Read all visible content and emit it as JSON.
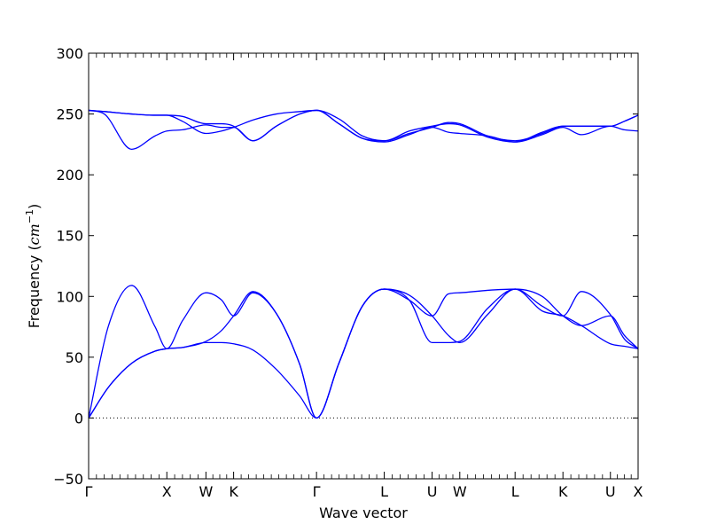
{
  "chart_data": {
    "type": "line",
    "xlabel": "Wave vector",
    "ylabel": {
      "text": "Frequency (",
      "unit": "cm",
      "exponent": "−1",
      "close": ")"
    },
    "ylim": [
      -50,
      300
    ],
    "yticks": [
      -50,
      0,
      50,
      100,
      150,
      200,
      250,
      300
    ],
    "ytick_labels": [
      "−50",
      "0",
      "50",
      "100",
      "150",
      "200",
      "250",
      "300"
    ],
    "x_points": [
      {
        "label": "Γ",
        "x": 0
      },
      {
        "label": "X",
        "x": 1.0
      },
      {
        "label": "W",
        "x": 1.5
      },
      {
        "label": "K",
        "x": 1.854
      },
      {
        "label": "Γ",
        "x": 2.914
      },
      {
        "label": "L",
        "x": 3.78
      },
      {
        "label": "U",
        "x": 4.392
      },
      {
        "label": "W",
        "x": 4.746
      },
      {
        "label": "L",
        "x": 5.453
      },
      {
        "label": "K",
        "x": 6.065
      },
      {
        "label": "U",
        "x": 6.672
      },
      {
        "label": "X",
        "x": 7.026
      }
    ],
    "xlim": [
      0,
      7.026
    ],
    "zero_line": 0,
    "series_color": "#0000ff",
    "series": [
      {
        "x": [
          0,
          0.25,
          0.55,
          0.85,
          1.0,
          1.2,
          1.5,
          1.7,
          1.854,
          2.1,
          2.4,
          2.7,
          2.914,
          3.2,
          3.5,
          3.78,
          4.1,
          4.392,
          4.6,
          4.746,
          5.1,
          5.453,
          5.8,
          6.065,
          6.3,
          6.672,
          6.85,
          7.026
        ],
        "y": [
          0,
          25,
          45,
          55,
          57,
          58,
          62,
          62,
          61,
          56,
          40,
          18,
          0,
          45,
          92,
          106,
          101,
          84,
          68,
          62,
          85,
          106,
          88,
          84,
          76,
          61,
          59,
          57
        ]
      },
      {
        "x": [
          0,
          0.25,
          0.55,
          0.85,
          1.0,
          1.2,
          1.5,
          1.7,
          1.854,
          2.1,
          2.4,
          2.7,
          2.914,
          3.2,
          3.5,
          3.78,
          4.1,
          4.392,
          4.6,
          4.746,
          5.1,
          5.453,
          5.8,
          6.065,
          6.3,
          6.672,
          6.85,
          7.026
        ],
        "y": [
          0,
          25,
          45,
          55,
          57,
          58,
          63,
          72,
          84,
          104,
          86,
          44,
          0,
          45,
          92,
          106,
          97,
          62,
          62,
          63,
          90,
          106,
          100,
          84,
          76,
          84,
          68,
          57
        ]
      },
      {
        "x": [
          0,
          0.25,
          0.55,
          0.85,
          1.0,
          1.2,
          1.5,
          1.7,
          1.854,
          2.1,
          2.4,
          2.7,
          2.914,
          3.2,
          3.5,
          3.78,
          4.1,
          4.392,
          4.6,
          4.746,
          5.1,
          5.453,
          5.8,
          6.065,
          6.3,
          6.672,
          6.85,
          7.026
        ],
        "y": [
          0,
          75,
          109,
          75,
          57,
          80,
          103,
          97,
          84,
          103,
          86,
          44,
          0,
          45,
          92,
          106,
          97,
          84,
          102,
          103,
          105,
          106,
          92,
          84,
          104,
          85,
          65,
          57
        ]
      },
      {
        "x": [
          0,
          0.2,
          0.55,
          0.85,
          1.0,
          1.2,
          1.5,
          1.7,
          1.854,
          2.1,
          2.4,
          2.7,
          2.914,
          3.2,
          3.5,
          3.78,
          4.1,
          4.392,
          4.6,
          4.746,
          5.1,
          5.453,
          5.8,
          6.065,
          6.3,
          6.672,
          6.85,
          7.026
        ],
        "y": [
          253,
          250,
          221,
          232,
          236,
          237,
          241,
          239,
          239,
          228,
          240,
          250,
          253,
          242,
          230,
          227,
          233,
          239,
          235,
          234,
          232,
          227,
          233,
          239,
          233,
          240,
          237,
          236
        ]
      },
      {
        "x": [
          0,
          0.2,
          0.55,
          0.85,
          1.0,
          1.2,
          1.5,
          1.7,
          1.854,
          2.1,
          2.4,
          2.7,
          2.914,
          3.2,
          3.5,
          3.78,
          4.1,
          4.392,
          4.6,
          4.746,
          5.1,
          5.453,
          5.8,
          6.065,
          6.3,
          6.672,
          6.85,
          7.026
        ],
        "y": [
          253,
          252,
          250,
          249,
          249,
          244,
          234,
          236,
          239,
          245,
          250,
          252,
          253,
          246,
          232,
          228,
          236,
          240,
          242,
          241,
          231,
          227,
          235,
          240,
          240,
          240,
          244,
          249
        ]
      },
      {
        "x": [
          0,
          0.2,
          0.55,
          0.85,
          1.0,
          1.2,
          1.5,
          1.7,
          1.854,
          2.1,
          2.4,
          2.7,
          2.914,
          3.2,
          3.5,
          3.78,
          4.1,
          4.392,
          4.6,
          4.746,
          5.1,
          5.453,
          5.8,
          6.065,
          6.3,
          6.672,
          6.85,
          7.026
        ],
        "y": [
          253,
          252,
          250,
          249,
          249,
          248,
          242,
          242,
          240,
          228,
          240,
          250,
          253,
          242,
          230,
          228,
          234,
          239,
          243,
          242,
          232,
          228,
          234,
          240,
          240,
          240,
          244,
          249
        ]
      }
    ]
  }
}
